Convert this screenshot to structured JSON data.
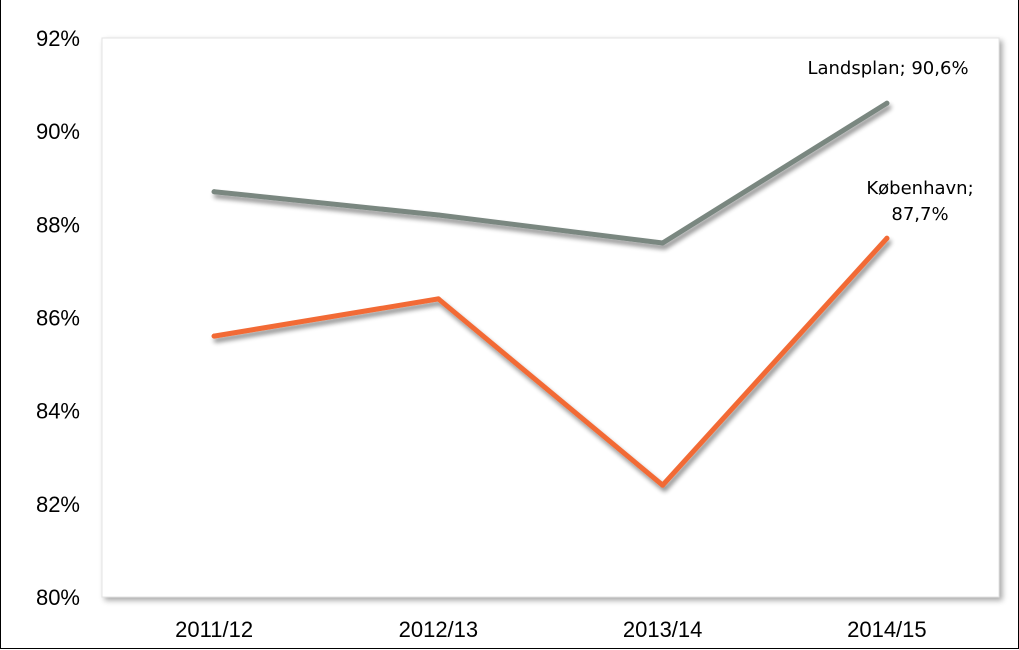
{
  "title": "",
  "chart_data": {
    "type": "line",
    "categories": [
      "2011/12",
      "2012/13",
      "2013/14",
      "2014/15"
    ],
    "series": [
      {
        "name": "Landsplan",
        "values": [
          88.7,
          88.2,
          87.6,
          90.6
        ],
        "color": "#7a8780"
      },
      {
        "name": "København",
        "values": [
          85.6,
          86.4,
          82.4,
          87.7
        ],
        "color": "#f26a35"
      }
    ],
    "data_labels": [
      {
        "series": "Landsplan",
        "lines": [
          "Landsplan; 90,6%"
        ]
      },
      {
        "series": "København",
        "lines": [
          "København;",
          "87,7%"
        ]
      }
    ],
    "ylim": [
      80,
      92
    ],
    "yticks": [
      80,
      82,
      84,
      86,
      88,
      90,
      92
    ],
    "ytick_labels": [
      "80%",
      "82%",
      "84%",
      "86%",
      "88%",
      "90%",
      "92%"
    ],
    "xlabel": "",
    "ylabel": "",
    "grid": false,
    "legend": "none"
  }
}
